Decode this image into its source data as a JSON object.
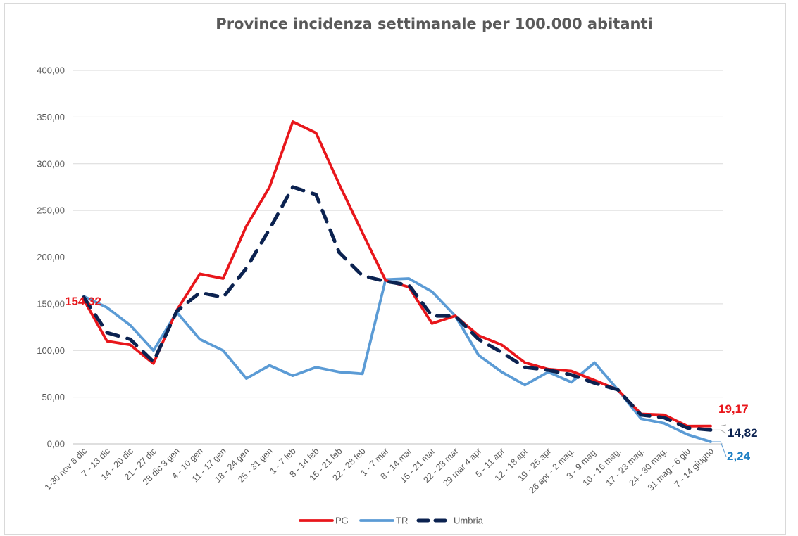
{
  "chart_data": {
    "type": "line",
    "title": "Province incidenza settimanale per 100.000 abitanti",
    "ylim": [
      0,
      400
    ],
    "yticks": [
      "0,00",
      "50,00",
      "100,00",
      "150,00",
      "200,00",
      "250,00",
      "300,00",
      "350,00",
      "400,00"
    ],
    "categories": [
      "1-30 nov 6 dic",
      "7 - 13 dic",
      "14 - 20 dic",
      "21 - 27 dic",
      "28 dic 3 gen",
      "4 - 10 gen",
      "11 - 17 gen",
      "18 - 24 gen",
      "25 - 31 gen",
      "1 - 7 feb",
      "8 - 14 feb",
      "15 - 21 feb",
      "22 - 28 feb",
      "1 - 7 mar",
      "8 - 14 mar",
      "15 - 21 mar",
      "22 - 28 mar",
      "29 mar 4 apr",
      "5 - 11 apr",
      "12 - 18 apr",
      "19 - 25 apr",
      "26 apr - 2 mag.",
      "3 - 9 mag.",
      "10 - 16 mag.",
      "17 - 23 mag.",
      "24 - 30 mag.",
      "31 mag - 6 giu",
      "7 - 14 giugno"
    ],
    "series": [
      {
        "name": "PG",
        "color": "#e8161b",
        "values": [
          154.32,
          110,
          106,
          86,
          143,
          182,
          177,
          233,
          275,
          345,
          333,
          278,
          226,
          175,
          168,
          129,
          137,
          116,
          106,
          87,
          80,
          78,
          68,
          58,
          32,
          31,
          19,
          19.17
        ]
      },
      {
        "name": "TR",
        "color": "#5b9bd5",
        "values": [
          158,
          146,
          127,
          100,
          141,
          112,
          100,
          70,
          84,
          73,
          82,
          77,
          75,
          176,
          177,
          163,
          137,
          95,
          77,
          63,
          77,
          66,
          87,
          58,
          27,
          22,
          10,
          2.24
        ]
      },
      {
        "name": "Umbria",
        "color": "#0b2250",
        "values": [
          157,
          119,
          112,
          88,
          142,
          162,
          157,
          188,
          230,
          275,
          267,
          205,
          180,
          174,
          170,
          137,
          137,
          112,
          98,
          82,
          79,
          74,
          65,
          58,
          31,
          28,
          17,
          14.82
        ]
      }
    ],
    "data_labels": [
      {
        "text": "154,32",
        "color": "#e8161b"
      },
      {
        "text": "19,17",
        "color": "#e8161b"
      },
      {
        "text": "14,82",
        "color": "#0b2250"
      },
      {
        "text": "2,24",
        "color": "#1f80c4"
      }
    ],
    "legend": [
      "PG",
      "TR",
      "Umbria"
    ],
    "legend_position": "bottom",
    "grid": true
  }
}
